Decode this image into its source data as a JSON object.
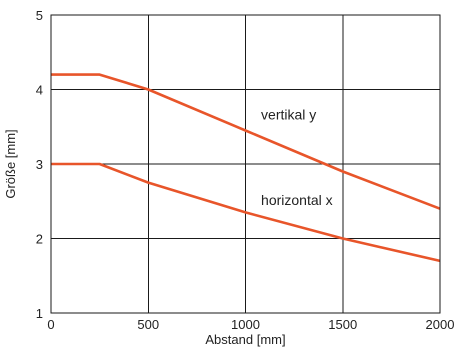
{
  "chart_data": {
    "type": "line",
    "title": "",
    "xlabel": "Abstand [mm]",
    "ylabel": "Größe [mm]",
    "xlim": [
      0,
      2000
    ],
    "ylim": [
      1,
      5
    ],
    "xticks": [
      0,
      500,
      1000,
      1500,
      2000
    ],
    "yticks": [
      1,
      2,
      3,
      4,
      5
    ],
    "grid": true,
    "legend": "none",
    "series": [
      {
        "color": "#e8552a",
        "x": [
          0,
          250,
          500,
          1000,
          1500,
          2000
        ],
        "y": [
          4.2,
          4.2,
          4.0,
          3.45,
          2.9,
          2.4
        ]
      },
      {
        "color": "#e8552a",
        "x": [
          0,
          250,
          500,
          1000,
          1500,
          2000
        ],
        "y": [
          3.0,
          3.0,
          2.75,
          2.35,
          2.0,
          1.7
        ]
      }
    ],
    "annotations": [
      {
        "text": "vertikal y",
        "x": 1080,
        "y": 3.6
      },
      {
        "text": "horizontal x",
        "x": 1080,
        "y": 2.45
      }
    ]
  }
}
